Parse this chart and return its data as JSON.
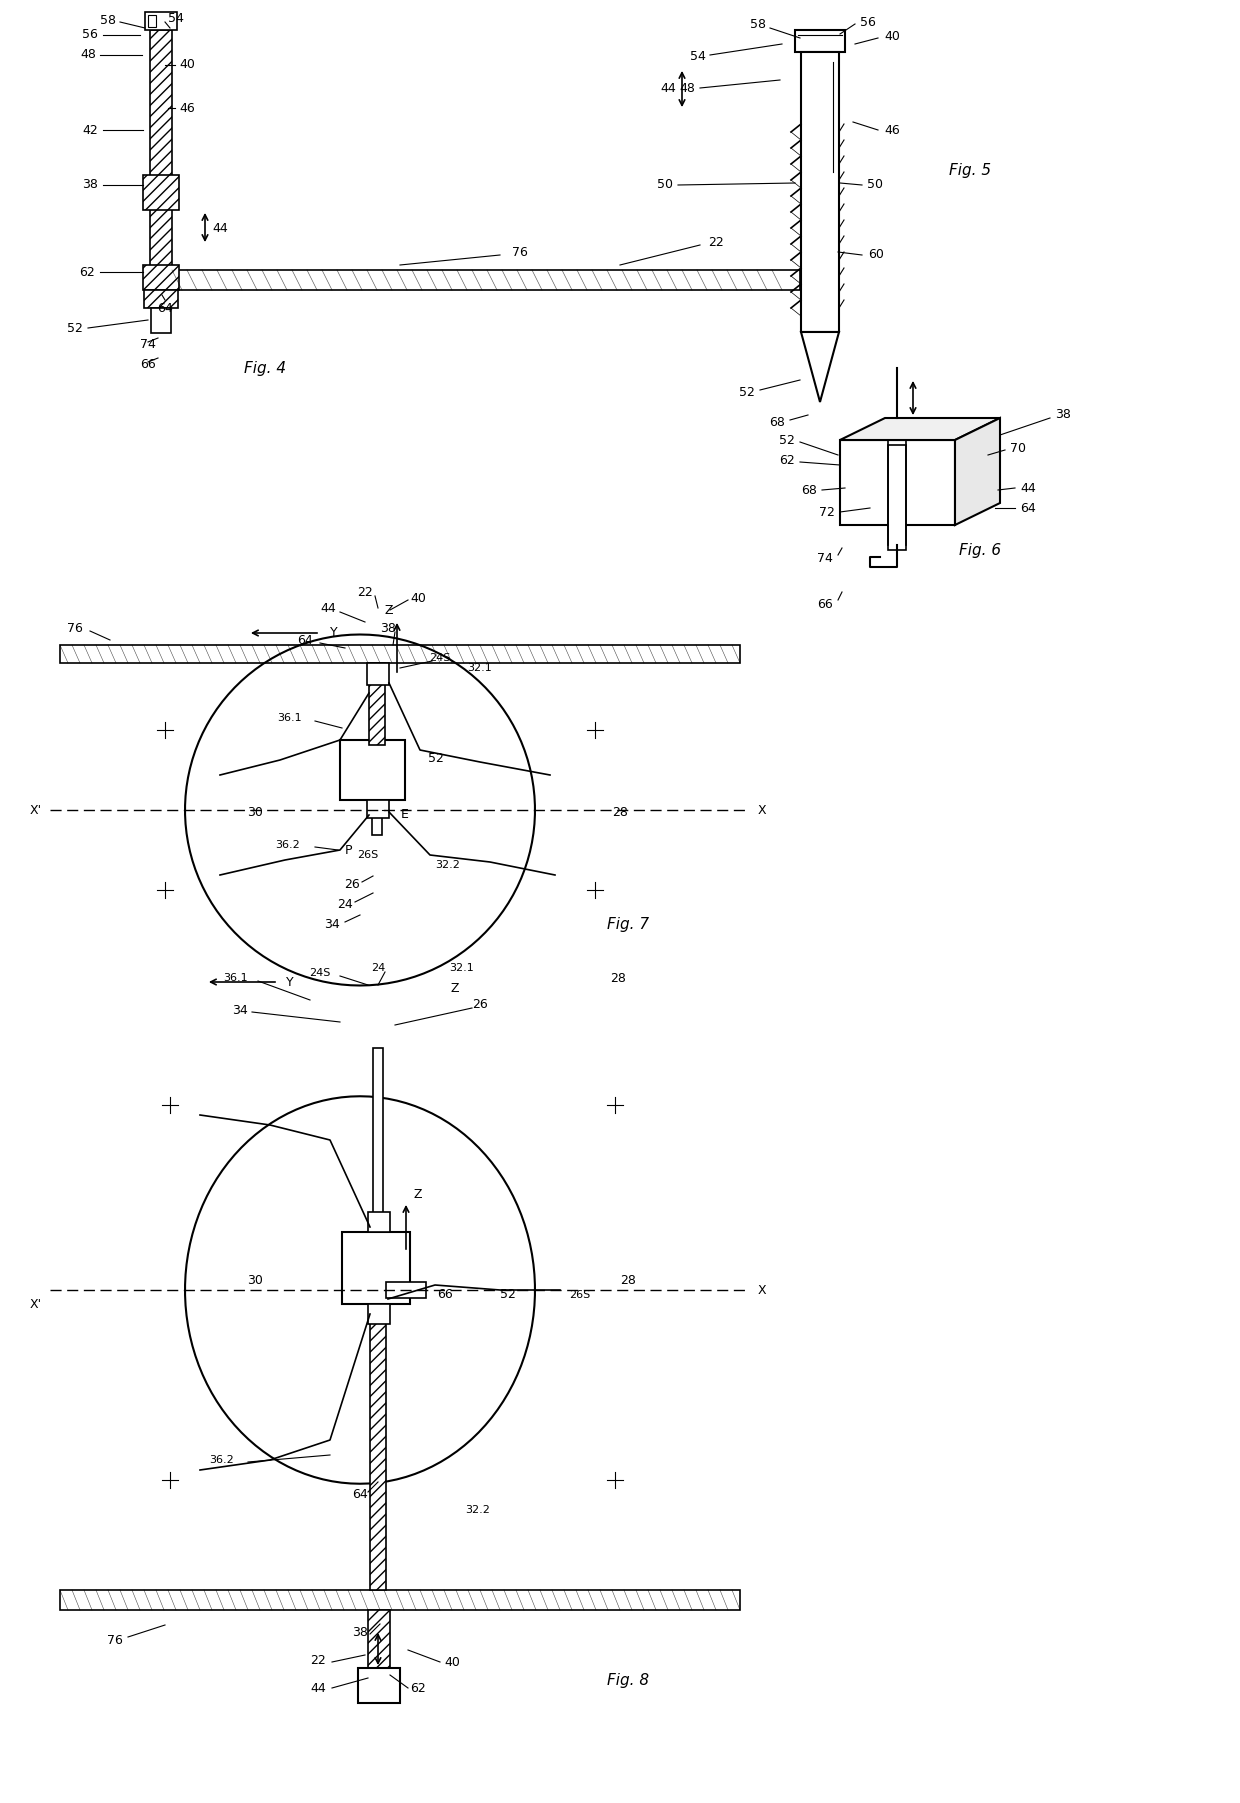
{
  "bg_color": "#ffffff",
  "line_color": "#000000",
  "fig4_label": "Fig. 4",
  "fig5_label": "Fig. 5",
  "fig6_label": "Fig. 6",
  "fig7_label": "Fig. 7",
  "fig8_label": "Fig. 8"
}
